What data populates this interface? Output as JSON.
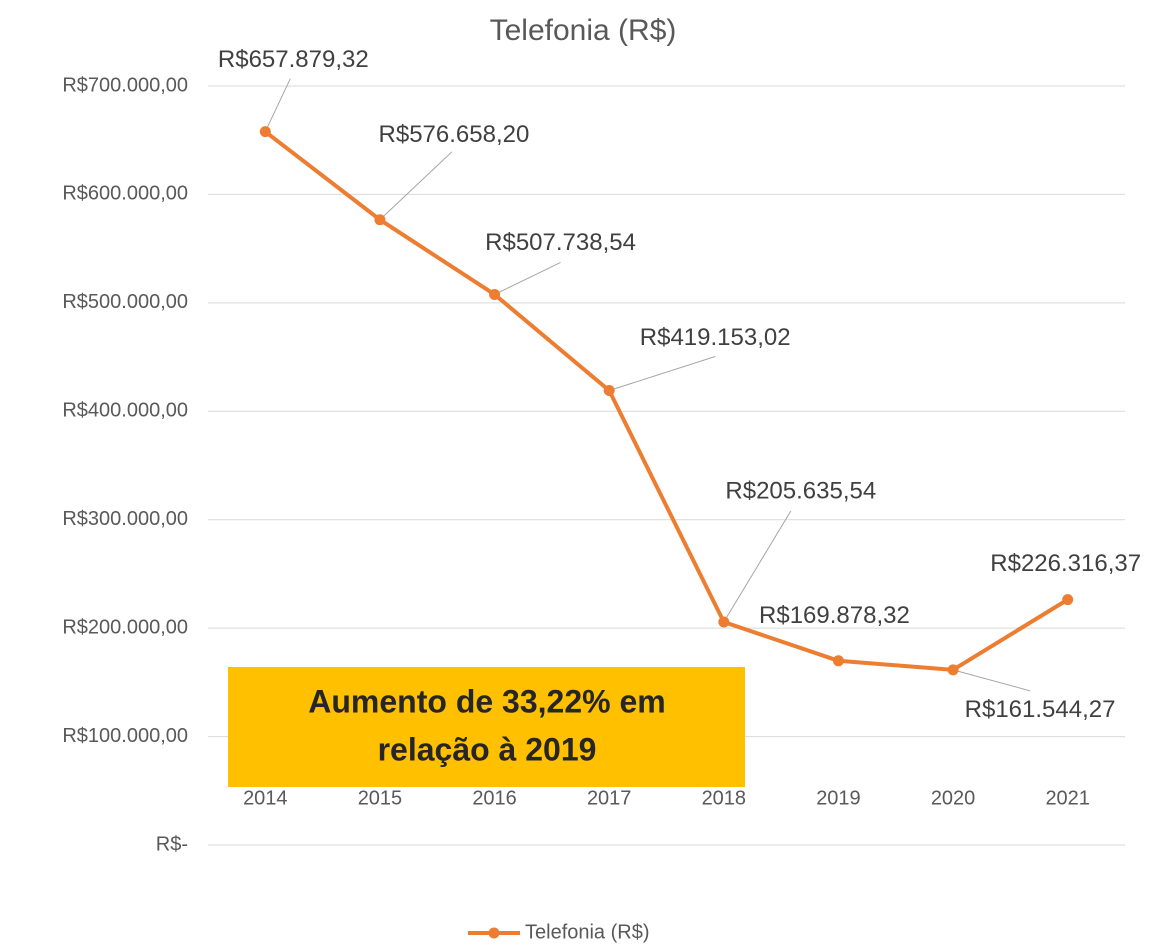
{
  "chart_data": {
    "type": "line",
    "title": "Telefonia (R$)",
    "categories": [
      "2014",
      "2015",
      "2016",
      "2017",
      "2018",
      "2019",
      "2020",
      "2021"
    ],
    "series": [
      {
        "name": "Telefonia (R$)",
        "color": "#ed7d31",
        "values": [
          657879.32,
          576658.2,
          507738.54,
          419153.02,
          205635.54,
          169878.32,
          161544.27,
          226316.37
        ],
        "value_labels": [
          "R$657.879,32",
          "R$576.658,20",
          "R$507.738,54",
          "R$419.153,02",
          "R$205.635,54",
          "R$169.878,32",
          "R$161.544,27",
          "R$226.316,37"
        ]
      }
    ],
    "ylim": [
      0,
      700000
    ],
    "yticks": [
      {
        "value": 0,
        "label": "R$-"
      },
      {
        "value": 100000,
        "label": "R$100.000,00"
      },
      {
        "value": 200000,
        "label": "R$200.000,00"
      },
      {
        "value": 300000,
        "label": "R$300.000,00"
      },
      {
        "value": 400000,
        "label": "R$400.000,00"
      },
      {
        "value": 500000,
        "label": "R$500.000,00"
      },
      {
        "value": 600000,
        "label": "R$600.000,00"
      },
      {
        "value": 700000,
        "label": "R$700.000,00"
      }
    ],
    "grid": true,
    "legend": "bottom",
    "annotation": {
      "lines": [
        "Aumento de 33,22% em",
        "relação à 2019"
      ],
      "color": "#ffc000"
    }
  }
}
